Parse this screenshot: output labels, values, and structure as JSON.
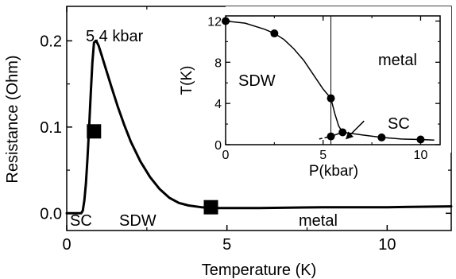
{
  "chart_data": [
    {
      "type": "line",
      "xlabel": "Temperature (K)",
      "ylabel": "Resistance  (Ohm)",
      "xlim": [
        0,
        12
      ],
      "ylim": [
        -0.02,
        0.24
      ],
      "x_ticks": [
        0,
        5,
        10
      ],
      "y_ticks": [
        0.0,
        0.1,
        0.2
      ],
      "annotations": {
        "pressure": "5.4 kbar",
        "sc": "SC",
        "sdw": "SDW",
        "metal": "metal"
      },
      "series": [
        {
          "x": [
            0.0,
            0.45,
            0.5,
            0.55,
            0.6,
            0.65,
            0.7,
            0.75,
            0.8,
            0.85,
            0.9,
            0.95,
            1.0,
            1.1,
            1.2,
            1.4,
            1.6,
            1.8,
            2.0,
            2.3,
            2.6,
            2.9,
            3.2,
            3.5,
            3.8,
            4.2,
            4.5,
            5.0,
            6.0,
            8.0,
            10.0,
            12.0
          ],
          "y": [
            0.0,
            0.0,
            0.003,
            0.015,
            0.035,
            0.065,
            0.1,
            0.14,
            0.175,
            0.198,
            0.2,
            0.198,
            0.194,
            0.182,
            0.17,
            0.146,
            0.123,
            0.102,
            0.083,
            0.06,
            0.042,
            0.028,
            0.018,
            0.012,
            0.009,
            0.007,
            0.006,
            0.006,
            0.006,
            0.007,
            0.007,
            0.008
          ]
        }
      ],
      "markers": [
        {
          "x": 0.85,
          "y": 0.095
        },
        {
          "x": 4.5,
          "y": 0.007
        }
      ]
    },
    {
      "type": "scatter",
      "xlabel": "P(kbar)",
      "ylabel": "T(K)",
      "xlim": [
        0,
        11
      ],
      "ylim": [
        0,
        12.5
      ],
      "x_ticks": [
        0,
        5,
        10
      ],
      "y_ticks": [
        0,
        4,
        8,
        12
      ],
      "annotations": {
        "sdw": "SDW",
        "metal": "metal",
        "sc": "SC"
      },
      "vertical_line_x": 5.4,
      "points": [
        {
          "x": 0,
          "y": 12
        },
        {
          "x": 2.5,
          "y": 10.8
        },
        {
          "x": 5.4,
          "y": 4.5
        },
        {
          "x": 5.4,
          "y": 0.8
        },
        {
          "x": 6.0,
          "y": 1.2
        },
        {
          "x": 8.0,
          "y": 0.7
        },
        {
          "x": 10.0,
          "y": 0.5
        }
      ],
      "sdw_boundary": {
        "x": [
          0,
          1,
          2,
          2.5,
          3,
          3.5,
          4,
          4.5,
          5,
          5.4,
          5.6,
          5.8,
          6.0
        ],
        "y": [
          12,
          11.8,
          11.2,
          10.8,
          10.2,
          9.3,
          8.2,
          6.8,
          5.4,
          4.5,
          3.0,
          1.8,
          1.2
        ]
      },
      "sc_boundary": {
        "x": [
          5.4,
          6.0,
          7.0,
          8.0,
          9.0,
          10.0,
          10.7
        ],
        "y": [
          0.8,
          1.2,
          0.95,
          0.7,
          0.55,
          0.5,
          0.45
        ]
      },
      "sc_extension": {
        "x": [
          4.8,
          5.4
        ],
        "y": [
          0.55,
          0.8
        ]
      },
      "sc_arrow": {
        "from": {
          "x": 7.1,
          "y": 2.3
        },
        "to": {
          "x": 6.2,
          "y": 0.6
        }
      }
    }
  ]
}
